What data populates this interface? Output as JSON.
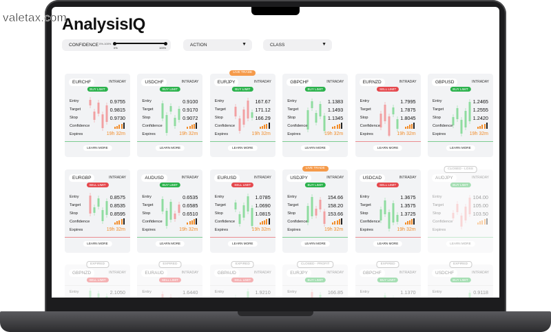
{
  "watermark": "valetax.com",
  "header": {
    "title": "AnalysisIQ"
  },
  "filters": {
    "confidence": {
      "label": "CONFIDENCE",
      "range": "0%-100%",
      "min": "0%",
      "max": "100%"
    },
    "action": "ACTION",
    "class": "CLASS"
  },
  "labels": {
    "entry": "Entry",
    "target": "Target",
    "stop": "Stop",
    "confidence": "Confidence",
    "expires": "Expires",
    "learn_more": "LEARN MORE"
  },
  "cards": [
    {
      "symbol": "EURCHF",
      "class": "INTRADAY",
      "action": "BUY LIMIT",
      "action_color": "#2bb24c",
      "entry": "0.9755",
      "target": "0.9815",
      "stop": "0.9730",
      "expires": "19h 32m"
    },
    {
      "symbol": "USDCHF",
      "class": "INTRADAY",
      "action": "BUY LIMIT",
      "action_color": "#2bb24c",
      "entry": "0.9100",
      "target": "0.9170",
      "stop": "0.9072",
      "expires": "19h 32m"
    },
    {
      "symbol": "EURJPY",
      "class": "INTRADAY",
      "badge": "LIVE TRADE",
      "action": "BUY LIMIT",
      "action_color": "#2bb24c",
      "entry": "167.67",
      "target": "171.12",
      "stop": "166.29",
      "expires": "19h 32m"
    },
    {
      "symbol": "GBPCHF",
      "class": "INTRADAY",
      "action": "BUY LIMIT",
      "action_color": "#2bb24c",
      "entry": "1.1383",
      "target": "1.1493",
      "stop": "1.1345",
      "expires": "19h 32m"
    },
    {
      "symbol": "EURNZD",
      "class": "INTRADAY",
      "action": "SELL LIMIT",
      "action_color": "#e5484d",
      "entry": "1.7995",
      "target": "1.7875",
      "stop": "1.8045",
      "expires": "19h 32m"
    },
    {
      "symbol": "GBPUSD",
      "class": "INTRADAY",
      "action": "BUY LIMIT",
      "action_color": "#2bb24c",
      "entry": "1.2465",
      "target": "1.2555",
      "stop": "1.2420",
      "expires": "19h 32m"
    },
    {
      "symbol": "EURGBP",
      "class": "INTRADAY",
      "action": "SELL LIMIT",
      "action_color": "#e5484d",
      "entry": "0.8575",
      "target": "0.8535",
      "stop": "0.8595",
      "expires": "19h 32m"
    },
    {
      "symbol": "AUDUSD",
      "class": "INTRADAY",
      "action": "BUY LIMIT",
      "action_color": "#2bb24c",
      "entry": "0.6535",
      "target": "0.6585",
      "stop": "0.6510",
      "expires": "19h 32m"
    },
    {
      "symbol": "EURUSD",
      "class": "INTRADAY",
      "action": "SELL LIMIT",
      "action_color": "#e5484d",
      "entry": "1.0785",
      "target": "1.0690",
      "stop": "1.0815",
      "expires": "19h 32m"
    },
    {
      "symbol": "USDJPY",
      "class": "INTRADAY",
      "badge": "LIVE TRADE",
      "action": "BUY LIMIT",
      "action_color": "#2bb24c",
      "entry": "154.66",
      "target": "158.20",
      "stop": "153.66",
      "expires": "19h 32m"
    },
    {
      "symbol": "USDCAD",
      "class": "INTRADAY",
      "action": "SELL LIMIT",
      "action_color": "#e5484d",
      "entry": "1.3675",
      "target": "1.3575",
      "stop": "1.3725",
      "expires": "19h 32m"
    },
    {
      "symbol": "AUDJPY",
      "class": "INTRADAY",
      "badge": "CLOSED - LOSS",
      "faded": true,
      "action": "BUY LIMIT",
      "action_color": "#2bb24c",
      "entry": "104.00",
      "target": "105.00",
      "stop": "103.50"
    },
    {
      "symbol": "GBPNZD",
      "class": "INTRADAY",
      "badge": "EXPIRED",
      "faded": true,
      "action": "SELL LIMIT",
      "action_color": "#e5484d",
      "entry": "2.1050"
    },
    {
      "symbol": "EURAUD",
      "class": "INTRADAY",
      "badge": "EXPIRED",
      "faded": true,
      "action": "SELL LIMIT",
      "action_color": "#e5484d",
      "entry": "1.6440"
    },
    {
      "symbol": "GBPAUD",
      "class": "INTRADAY",
      "badge": "EXPIRED",
      "faded": true,
      "action": "SELL LIMIT",
      "action_color": "#e5484d",
      "entry": "1.9210"
    },
    {
      "symbol": "EURJPY",
      "class": "INTRADAY",
      "badge": "CLOSED - PROFIT",
      "faded": true,
      "action": "BUY LIMIT",
      "action_color": "#2bb24c",
      "entry": "166.85"
    },
    {
      "symbol": "GBPCHF",
      "class": "INTRADAY",
      "badge": "EXPIRED",
      "faded": true,
      "action": "BUY LIMIT",
      "action_color": "#2bb24c",
      "entry": "1.1370"
    },
    {
      "symbol": "USDCHF",
      "class": "INTRADAY",
      "badge": "EXPIRED",
      "faded": true,
      "action": "BUY LIMIT",
      "action_color": "#2bb24c",
      "entry": "0.9118"
    }
  ]
}
